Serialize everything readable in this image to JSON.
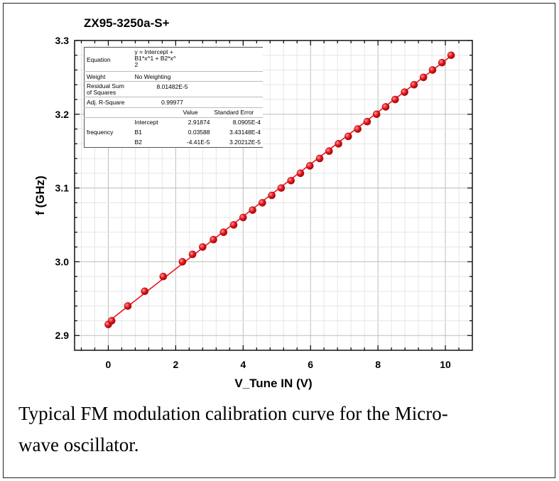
{
  "chart_data": {
    "type": "scatter",
    "title": "ZX95-3250a-S+",
    "xlabel": "V_Tune IN (V)",
    "ylabel": "f (GHz)",
    "xlim": [
      -1,
      10.8
    ],
    "ylim": [
      2.88,
      3.3
    ],
    "x_ticks": [
      0,
      2,
      4,
      6,
      8,
      10
    ],
    "x_tick_labels": [
      "0",
      "2",
      "4",
      "6",
      "8",
      "10"
    ],
    "y_ticks": [
      2.9,
      3.0,
      3.1,
      3.2,
      3.3
    ],
    "y_tick_labels": [
      "2.9",
      "3.0",
      "3.1",
      "3.2",
      "3.3"
    ],
    "grid": true,
    "series": [
      {
        "kind": "points",
        "color": "#e8141b",
        "x": [
          0.0,
          0.1,
          0.58,
          1.08,
          1.63,
          2.2,
          2.5,
          2.8,
          3.12,
          3.42,
          3.72,
          4.0,
          4.28,
          4.57,
          4.85,
          5.13,
          5.42,
          5.7,
          5.98,
          6.27,
          6.55,
          6.83,
          7.12,
          7.4,
          7.68,
          7.96,
          8.23,
          8.51,
          8.79,
          9.07,
          9.35,
          9.62,
          9.9,
          10.17
        ],
        "y": [
          2.915,
          2.92,
          2.94,
          2.96,
          2.98,
          3.0,
          3.01,
          3.02,
          3.03,
          3.04,
          3.05,
          3.06,
          3.07,
          3.08,
          3.09,
          3.1,
          3.11,
          3.12,
          3.13,
          3.14,
          3.15,
          3.16,
          3.17,
          3.18,
          3.19,
          3.2,
          3.21,
          3.22,
          3.23,
          3.24,
          3.25,
          3.26,
          3.27,
          3.28
        ]
      },
      {
        "kind": "fit",
        "color": "#e8141b",
        "x_range": [
          0.0,
          10.17
        ],
        "intercept": 2.91874,
        "b1": 0.03588,
        "b2": -4.41e-05
      }
    ],
    "fit_table": {
      "equation_label": "Equation",
      "equation": "y = Intercept + B1*x^1 + B2*x^2",
      "equation_lines": [
        "y = Intercept +",
        "B1*x^1 + B2*x^",
        "2"
      ],
      "weight_label": "Weight",
      "weight": "No Weighting",
      "rss_label_lines": [
        "Residual Sum",
        "of Squares"
      ],
      "rss": "8.01482E-5",
      "adjr_label": "Adj. R-Square",
      "adjr": "0.99977",
      "value_header": "Value",
      "stderr_header": "Standard Error",
      "param_group": "frequency",
      "params": [
        {
          "name": "Intercept",
          "value": "2.91874",
          "error": "8.0905E-4"
        },
        {
          "name": "B1",
          "value": "0.03588",
          "error": "3.43148E-4"
        },
        {
          "name": "B2",
          "value": "-4.41E-5",
          "error": "3.20212E-5"
        }
      ]
    }
  },
  "caption": {
    "line1": "Typical FM modulation calibration curve for the Micro-",
    "line2": "wave oscillator."
  }
}
